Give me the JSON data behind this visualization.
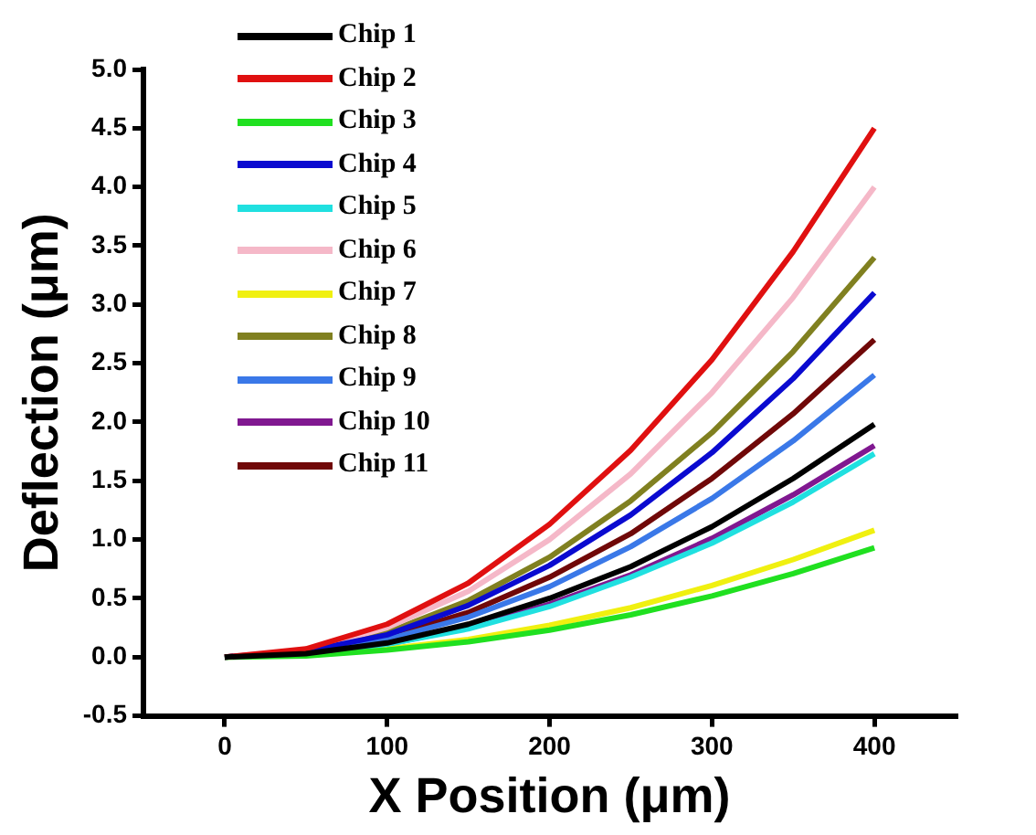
{
  "chart_data": {
    "type": "line",
    "xlabel": "X Position (μm)",
    "ylabel": "Deflection (μm)",
    "x": [
      0,
      50,
      100,
      150,
      200,
      250,
      300,
      350,
      400
    ],
    "xlim": [
      -50,
      450
    ],
    "xticks": [
      0,
      100,
      200,
      300,
      400
    ],
    "ylim": [
      -0.5,
      5.0
    ],
    "yticks": [
      {
        "value": -0.5,
        "label": "-0.5"
      },
      {
        "value": 0,
        "label": "0.0"
      },
      {
        "value": 0.5,
        "label": "0.5"
      },
      {
        "value": 1,
        "label": "1.0"
      },
      {
        "value": 1.5,
        "label": "1.5"
      },
      {
        "value": 2,
        "label": "2.0"
      },
      {
        "value": 2.5,
        "label": "2.5"
      },
      {
        "value": 3,
        "label": "3.0"
      },
      {
        "value": 3.5,
        "label": "3.5"
      },
      {
        "value": 4,
        "label": "4.0"
      },
      {
        "value": 4.5,
        "label": "4.5"
      },
      {
        "value": 5,
        "label": "5.0"
      }
    ],
    "grid": false,
    "legend": "top left",
    "marker": "none",
    "line_style": "solid",
    "series": [
      {
        "name": "Chip 1",
        "color": "#000000",
        "values": [
          0,
          0.03,
          0.12,
          0.28,
          0.5,
          0.77,
          1.11,
          1.52,
          1.98
        ]
      },
      {
        "name": "Chip 2",
        "color": "#e01010",
        "values": [
          0,
          0.07,
          0.28,
          0.63,
          1.13,
          1.76,
          2.53,
          3.45,
          4.5
        ]
      },
      {
        "name": "Chip 3",
        "color": "#20e020",
        "values": [
          0,
          0.01,
          0.06,
          0.13,
          0.23,
          0.36,
          0.52,
          0.71,
          0.93
        ]
      },
      {
        "name": "Chip 4",
        "color": "#0a0ad0",
        "values": [
          0,
          0.05,
          0.19,
          0.44,
          0.78,
          1.21,
          1.74,
          2.37,
          3.1
        ]
      },
      {
        "name": "Chip 5",
        "color": "#20e0e0",
        "values": [
          0,
          0.03,
          0.11,
          0.24,
          0.43,
          0.68,
          0.97,
          1.32,
          1.73
        ]
      },
      {
        "name": "Chip 6",
        "color": "#f5b8c8",
        "values": [
          0,
          0.06,
          0.25,
          0.56,
          1.0,
          1.56,
          2.25,
          3.06,
          4.0
        ]
      },
      {
        "name": "Chip 7",
        "color": "#f0f010",
        "values": [
          0,
          0.02,
          0.07,
          0.15,
          0.27,
          0.42,
          0.61,
          0.83,
          1.08
        ]
      },
      {
        "name": "Chip 8",
        "color": "#808020",
        "values": [
          0,
          0.05,
          0.21,
          0.48,
          0.85,
          1.33,
          1.91,
          2.6,
          3.4
        ]
      },
      {
        "name": "Chip 9",
        "color": "#3a78e8",
        "values": [
          0,
          0.04,
          0.15,
          0.34,
          0.6,
          0.94,
          1.35,
          1.84,
          2.4
        ]
      },
      {
        "name": "Chip 10",
        "color": "#801890",
        "values": [
          0,
          0.03,
          0.11,
          0.25,
          0.45,
          0.7,
          1.01,
          1.38,
          1.8
        ]
      },
      {
        "name": "Chip 11",
        "color": "#700808",
        "values": [
          0,
          0.04,
          0.17,
          0.38,
          0.68,
          1.05,
          1.52,
          2.07,
          2.7
        ]
      }
    ]
  }
}
